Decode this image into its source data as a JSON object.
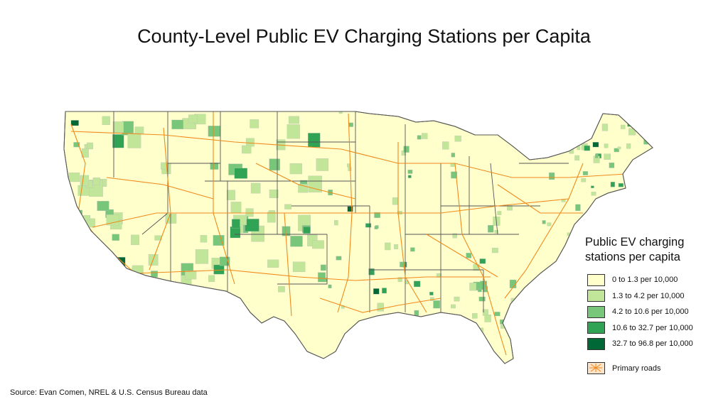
{
  "title": "County-Level Public EV Charging Stations per Capita",
  "legend": {
    "title_line1": "Public EV charging",
    "title_line2": "stations per capita",
    "classes": [
      {
        "label": "0 to 1.3 per 10,000",
        "color": "#ffffcc"
      },
      {
        "label": "1.3 to 4.2 per 10,000",
        "color": "#c2e699"
      },
      {
        "label": "4.2 to 10.6 per 10,000",
        "color": "#78c679"
      },
      {
        "label": "10.6 to 32.7 per 10,000",
        "color": "#31a354"
      },
      {
        "label": "32.7 to 96.8 per 10,000",
        "color": "#006837"
      }
    ],
    "roads_label": "Primary roads",
    "roads_color": "#f08a1c"
  },
  "source": "Source: Evan Comen, NREL & U.S. Census Bureau data"
}
